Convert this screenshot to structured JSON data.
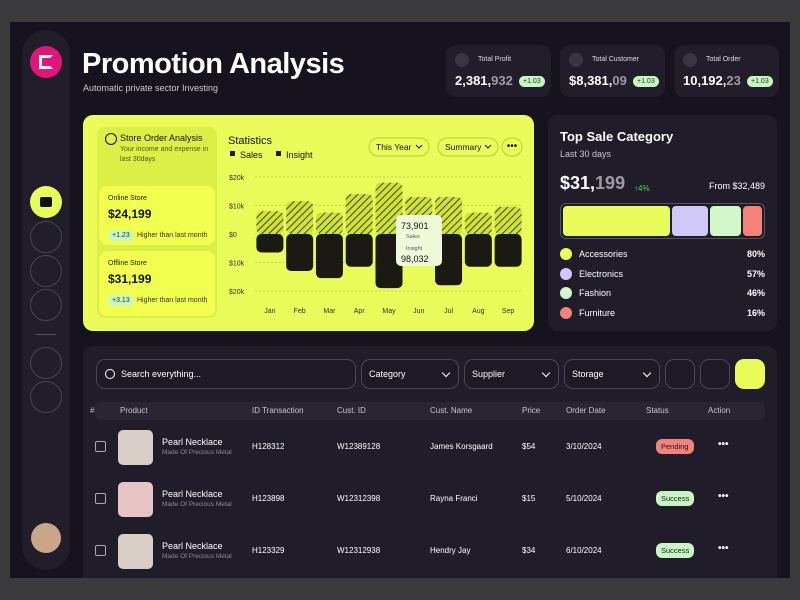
{
  "header": {
    "title": "Promotion Analysis",
    "subtitle": "Automatic private sector Investing"
  },
  "kpis": [
    {
      "label": "Total Profit",
      "value": "2,381,",
      "value_dim": "932",
      "change": "+1.03"
    },
    {
      "label": "Total Customer",
      "value": "$8,381,",
      "value_dim": "09",
      "change": "+1.03"
    },
    {
      "label": "Total Order",
      "value": "10,192,",
      "value_dim": "23",
      "change": "+1.03"
    }
  ],
  "store_order": {
    "title": "Store Order Analysis",
    "subtitle": "Your income and expense in last 30days",
    "stores": [
      {
        "name": "Online Store",
        "value": "$24,199",
        "change": "+1.23",
        "note": "Higher than last month"
      },
      {
        "name": "Offline Store",
        "value": "$31,199",
        "change": "+3.13",
        "note": "Higher than last month"
      }
    ]
  },
  "chart_data": {
    "type": "bar",
    "title": "Statistics",
    "controls": [
      "This Year",
      "Summary"
    ],
    "categories": [
      "Jan",
      "Feb",
      "Mar",
      "Apr",
      "May",
      "Jun",
      "Jul",
      "Aug",
      "Sep"
    ],
    "series": [
      {
        "name": "Sales",
        "color": "#1b1a12",
        "values": [
          8000,
          11500,
          7500,
          14000,
          18000,
          13000,
          13000,
          7500,
          9500
        ]
      },
      {
        "name": "Insight",
        "color": "#1b1a12",
        "values": [
          -6500,
          -13000,
          -15500,
          -11500,
          -19000,
          -7000,
          -18000,
          -11500,
          -11500
        ]
      }
    ],
    "ylim": [
      -20000,
      20000
    ],
    "yticks": [
      {
        "value": 20000,
        "label": "$20k"
      },
      {
        "value": 10000,
        "label": "$10k"
      },
      {
        "value": 0,
        "label": "$0"
      },
      {
        "value": -10000,
        "label": "$10k"
      },
      {
        "value": -20000,
        "label": "$20k"
      }
    ],
    "tooltip": {
      "sales": "73,901",
      "sales_label": "Sales",
      "insight": "98,032",
      "insight_label": "Insight"
    }
  },
  "top_sale": {
    "title": "Top Sale Category",
    "subtitle": "Last 30 days",
    "value": "$31,",
    "value_dim": "199",
    "change": "4%",
    "from": "From $32,489",
    "categories": [
      {
        "name": "Accessories",
        "percent": "80%",
        "color": "#eafc5a"
      },
      {
        "name": "Electronics",
        "percent": "57%",
        "color": "#d0c8f6"
      },
      {
        "name": "Fashion",
        "percent": "46%",
        "color": "#d2f7c8"
      },
      {
        "name": "Furniture",
        "percent": "16%",
        "color": "#f2827a"
      }
    ]
  },
  "filters": {
    "search": "Search everything...",
    "dropdowns": [
      "Category",
      "Supplier",
      "Storage"
    ]
  },
  "table": {
    "columns": [
      "#",
      "Product",
      "ID Transaction",
      "Cust. ID",
      "Cust. Name",
      "Price",
      "Order Date",
      "Status",
      "Action"
    ],
    "rows": [
      {
        "product": "Pearl Necklace",
        "desc": "Made Of Precious Metal",
        "id": "H128312",
        "cust_id": "W12389128",
        "name": "James Korsgaard",
        "price": "$54",
        "date": "3/10/2024",
        "status": "Pending"
      },
      {
        "product": "Pearl Necklace",
        "desc": "Made Of Precious Metal",
        "id": "H123898",
        "cust_id": "W12312398",
        "name": "Rayna Franci",
        "price": "$15",
        "date": "5/10/2024",
        "status": "Success"
      },
      {
        "product": "Pearl Necklace",
        "desc": "Made Of Precious Metal",
        "id": "H123329",
        "cust_id": "W12312938",
        "name": "Hendry Jay",
        "price": "$34",
        "date": "6/10/2024",
        "status": "Success"
      }
    ]
  }
}
